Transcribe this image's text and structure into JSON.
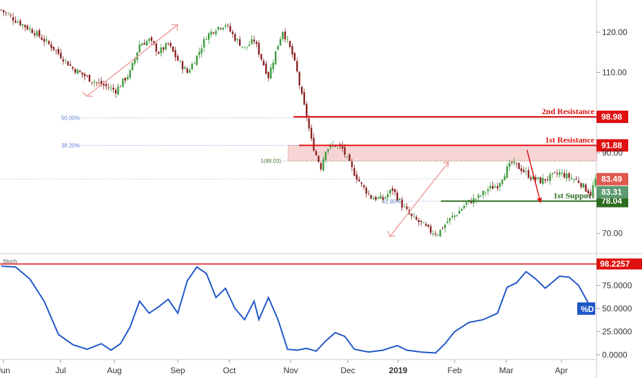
{
  "chart_data": {
    "type": "candlestick",
    "price_axis": {
      "range": [
        65,
        128
      ],
      "ticks": [
        "120.00",
        "110.00",
        "90.00",
        "70.00"
      ],
      "tick_values": [
        120,
        110,
        90,
        70
      ]
    },
    "x_axis": {
      "labels": [
        "Jun",
        "Jul",
        "Aug",
        "Sep",
        "Oct",
        "Nov",
        "Dec",
        "2019",
        "Feb",
        "Mar",
        "Apr"
      ]
    },
    "price_path": [
      [
        0,
        125.5
      ],
      [
        6,
        123
      ],
      [
        14,
        120
      ],
      [
        22,
        116
      ],
      [
        30,
        111
      ],
      [
        38,
        108
      ],
      [
        44,
        106.5
      ],
      [
        48,
        105.5
      ],
      [
        54,
        110
      ],
      [
        58,
        117
      ],
      [
        62,
        118
      ],
      [
        66,
        115
      ],
      [
        70,
        117
      ],
      [
        74,
        113
      ],
      [
        78,
        110
      ],
      [
        82,
        114
      ],
      [
        86,
        119
      ],
      [
        90,
        121
      ],
      [
        94,
        122
      ],
      [
        98,
        118.5
      ],
      [
        102,
        116
      ],
      [
        106,
        118
      ],
      [
        110,
        112
      ],
      [
        112,
        109
      ],
      [
        116,
        117
      ],
      [
        118,
        120.5
      ],
      [
        122,
        114.5
      ],
      [
        124,
        110
      ],
      [
        126,
        104
      ],
      [
        128,
        99
      ],
      [
        130,
        93
      ],
      [
        132,
        89.5
      ],
      [
        134,
        86.5
      ],
      [
        136,
        91
      ],
      [
        140,
        92
      ],
      [
        143,
        91
      ],
      [
        147,
        86
      ],
      [
        151,
        82
      ],
      [
        155,
        79
      ],
      [
        160,
        78.5
      ],
      [
        164,
        81
      ],
      [
        168,
        77
      ],
      [
        172,
        74
      ],
      [
        176,
        72.5
      ],
      [
        180,
        70.5
      ],
      [
        183,
        70
      ],
      [
        187,
        73
      ],
      [
        191,
        75
      ],
      [
        195,
        77.5
      ],
      [
        200,
        79
      ],
      [
        204,
        81
      ],
      [
        208,
        82
      ],
      [
        212,
        86
      ],
      [
        214,
        87.5
      ],
      [
        218,
        86
      ],
      [
        222,
        84
      ],
      [
        226,
        83
      ],
      [
        230,
        84
      ],
      [
        234,
        85
      ],
      [
        238,
        84
      ],
      [
        242,
        83
      ],
      [
        245,
        81
      ],
      [
        247,
        80
      ],
      [
        249,
        83.4
      ]
    ],
    "fib_levels": [
      {
        "label": "50.00%",
        "value": 98.7
      },
      {
        "label": "38.20%",
        "value": 91.9
      },
      {
        "label": "1(88.03)",
        "value": 88.03
      },
      {
        "label": "61.80%",
        "value": 78.0
      }
    ],
    "levels": [
      {
        "name": "2nd Resistance",
        "value": 98.98,
        "tag": "98.98",
        "color": "#e01010"
      },
      {
        "name": "1st Resistance",
        "value": 91.88,
        "tag": "91.88",
        "color": "#e01010"
      },
      {
        "name": "1st Support",
        "value": 78.04,
        "tag": "78.04",
        "color": "#2e6b1f"
      }
    ],
    "resistance_zone": [
      88.03,
      91.88
    ],
    "current_price_tags": [
      {
        "value": 83.49,
        "tag": "83.49",
        "color": "#e0584e"
      },
      {
        "value": 83.31,
        "tag": "83.31",
        "color": "#5d9a6f"
      }
    ],
    "stochastic": {
      "label": "Stoch",
      "range": [
        -5,
        105
      ],
      "ticks": [
        "75.0000",
        "50.0000",
        "25.0000",
        "0.0000"
      ],
      "tick_values": [
        75,
        50,
        25,
        0
      ],
      "overbought_line": {
        "value": 98.2257,
        "tag": "98.2257"
      },
      "series_tag": "%D",
      "values": [
        [
          0,
          96
        ],
        [
          6,
          95
        ],
        [
          12,
          82
        ],
        [
          18,
          58
        ],
        [
          24,
          22
        ],
        [
          30,
          11
        ],
        [
          36,
          6
        ],
        [
          42,
          12
        ],
        [
          46,
          5
        ],
        [
          50,
          12
        ],
        [
          54,
          30
        ],
        [
          58,
          58
        ],
        [
          62,
          45
        ],
        [
          66,
          52
        ],
        [
          70,
          60
        ],
        [
          74,
          45
        ],
        [
          78,
          80
        ],
        [
          82,
          95
        ],
        [
          86,
          88
        ],
        [
          90,
          62
        ],
        [
          94,
          72
        ],
        [
          98,
          50
        ],
        [
          102,
          38
        ],
        [
          106,
          58
        ],
        [
          108,
          38
        ],
        [
          112,
          62
        ],
        [
          116,
          38
        ],
        [
          120,
          6
        ],
        [
          124,
          5
        ],
        [
          128,
          7
        ],
        [
          132,
          4
        ],
        [
          136,
          15
        ],
        [
          140,
          24
        ],
        [
          144,
          20
        ],
        [
          148,
          6
        ],
        [
          154,
          3
        ],
        [
          160,
          5
        ],
        [
          166,
          10
        ],
        [
          170,
          5
        ],
        [
          176,
          3
        ],
        [
          182,
          2
        ],
        [
          186,
          12
        ],
        [
          190,
          25
        ],
        [
          196,
          35
        ],
        [
          202,
          38
        ],
        [
          208,
          45
        ],
        [
          212,
          73
        ],
        [
          216,
          78
        ],
        [
          220,
          90
        ],
        [
          224,
          82
        ],
        [
          228,
          72
        ],
        [
          234,
          85
        ],
        [
          238,
          84
        ],
        [
          242,
          75
        ],
        [
          246,
          56
        ],
        [
          249,
          50
        ]
      ]
    }
  }
}
